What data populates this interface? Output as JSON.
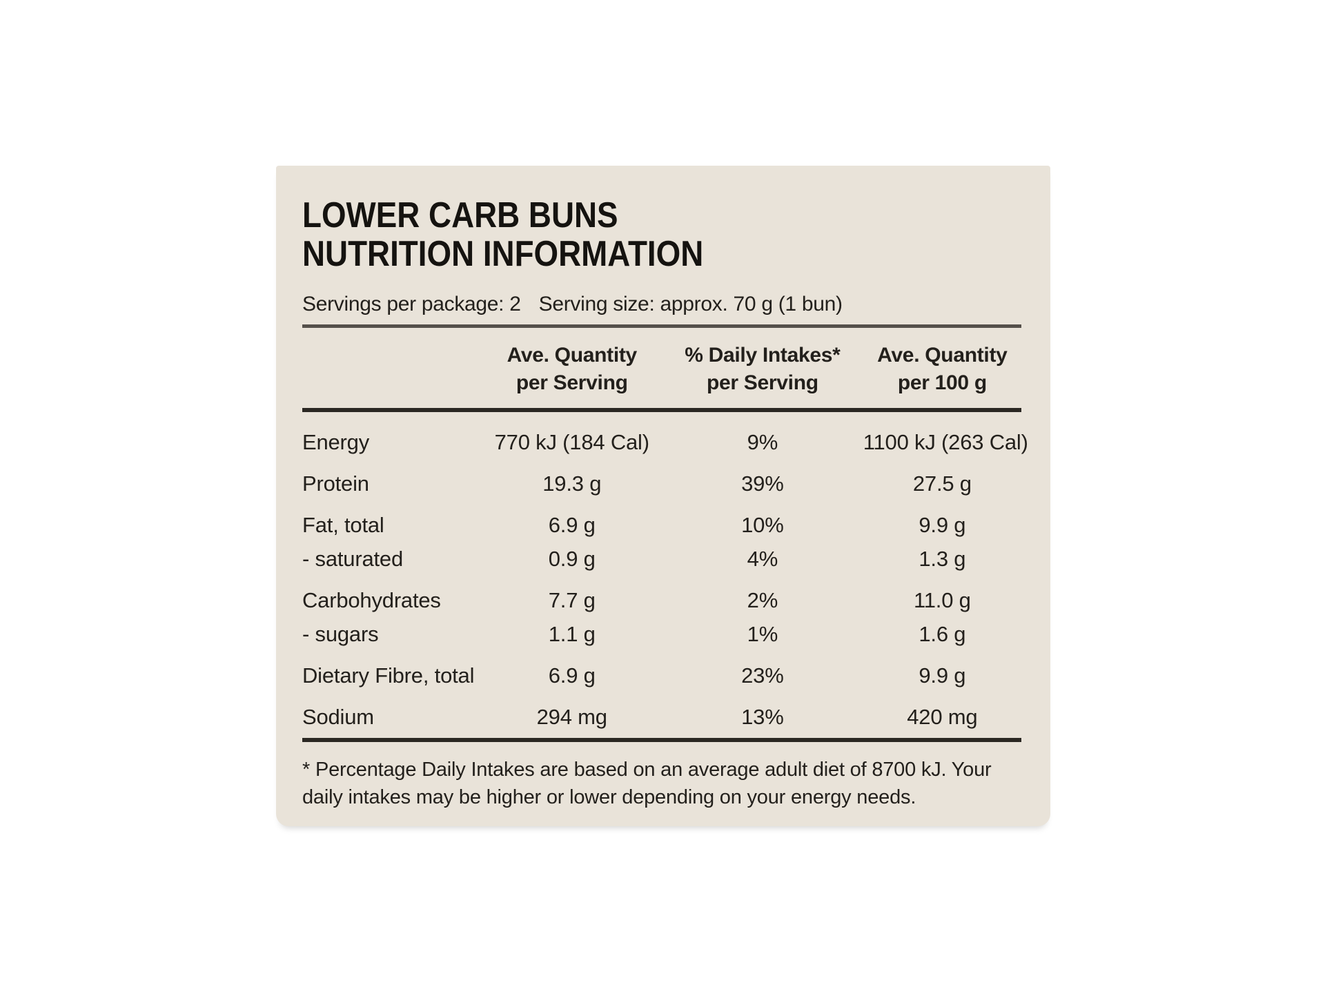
{
  "colors": {
    "page_bg": "#ffffff",
    "panel_bg": "#e9e3d9",
    "text": "#23201c",
    "rule_light": "#55504a",
    "rule_dark": "#2b2823"
  },
  "panel": {
    "title_line1": "LOWER CARB BUNS",
    "title_line2": "NUTRITION INFORMATION",
    "servings_per_package": "Servings per package: 2",
    "serving_size": "Serving size: approx. 70 g (1 bun)",
    "footnote": "* Percentage Daily Intakes are based on an average adult diet of 8700 kJ. Your daily intakes may be higher or lower depending on your energy needs."
  },
  "table": {
    "header": {
      "per_serving": {
        "line1": "Ave. Quantity",
        "line2": "per Serving"
      },
      "daily_intakes": {
        "line1": "% Daily Intakes*",
        "line2": "per Serving"
      },
      "per_100g": {
        "line1": "Ave. Quantity",
        "line2": "per 100 g"
      }
    },
    "rows": [
      {
        "name": "Energy",
        "per_serving": "770 kJ (184 Cal)",
        "daily_intake": "9%",
        "per_100g": "1100 kJ (263 Cal)"
      },
      {
        "name": "Protein",
        "per_serving": "19.3 g",
        "daily_intake": "39%",
        "per_100g": "27.5 g"
      },
      {
        "name": "Fat, total",
        "per_serving": "6.9 g",
        "daily_intake": "10%",
        "per_100g": "9.9 g"
      },
      {
        "name": "- saturated",
        "per_serving": "0.9 g",
        "daily_intake": "4%",
        "per_100g": "1.3 g"
      },
      {
        "name": "Carbohydrates",
        "per_serving": "7.7 g",
        "daily_intake": "2%",
        "per_100g": "11.0 g"
      },
      {
        "name": "- sugars",
        "per_serving": "1.1 g",
        "daily_intake": "1%",
        "per_100g": "1.6 g"
      },
      {
        "name": "Dietary Fibre, total",
        "per_serving": "6.9 g",
        "daily_intake": "23%",
        "per_100g": "9.9 g"
      },
      {
        "name": "Sodium",
        "per_serving": "294 mg",
        "daily_intake": "13%",
        "per_100g": "420 mg"
      }
    ]
  }
}
